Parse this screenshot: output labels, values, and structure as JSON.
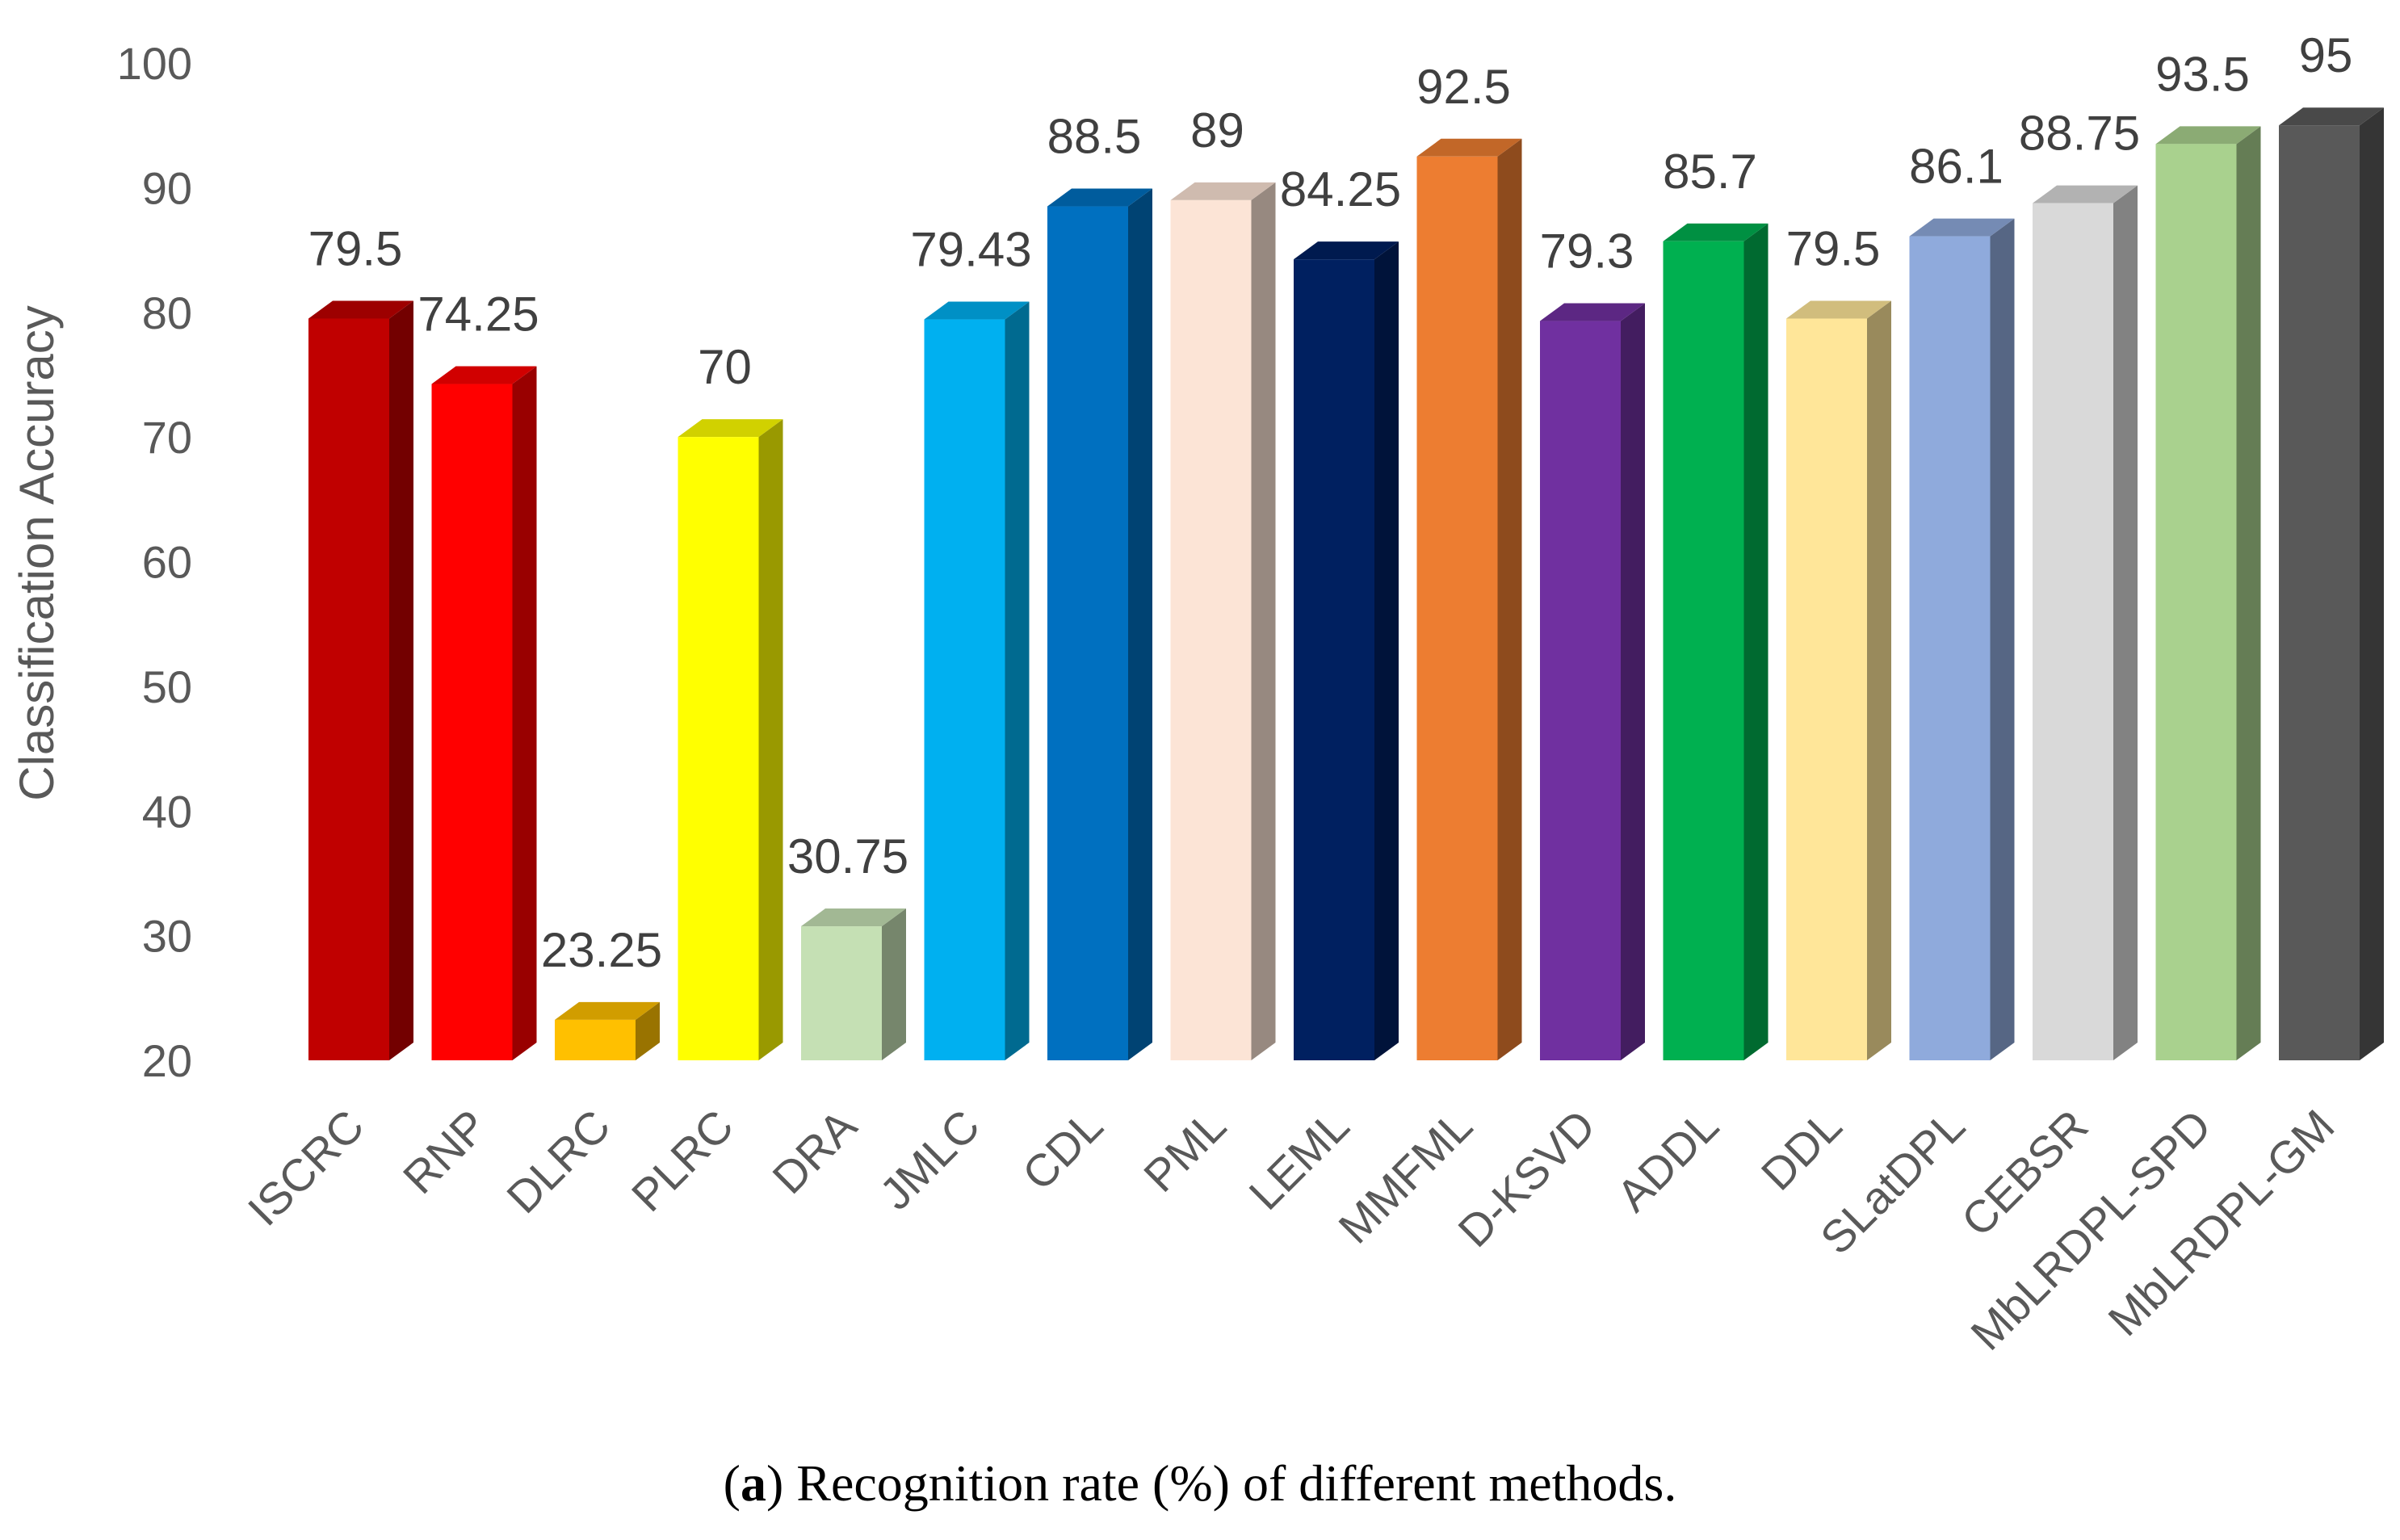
{
  "chart_data": {
    "type": "bar",
    "title": "",
    "xlabel": "",
    "ylabel": "Classification Accuracy",
    "ylim": [
      20,
      100
    ],
    "yticks": [
      20,
      30,
      40,
      50,
      60,
      70,
      80,
      90,
      100
    ],
    "categories": [
      "ISCRC",
      "RNP",
      "DLRC",
      "PLRC",
      "DRA",
      "JMLC",
      "CDL",
      "PML",
      "LEML",
      "MMFML",
      "D-KSVD",
      "ADDL",
      "DDL",
      "SLatDPL",
      "CEBSR",
      "MbLRDPL-SPD",
      "MbLRDPL-GM"
    ],
    "values": [
      79.5,
      74.25,
      23.25,
      70,
      30.75,
      79.43,
      88.5,
      89,
      84.25,
      92.5,
      79.3,
      85.7,
      79.5,
      86.1,
      88.75,
      93.5,
      95
    ],
    "labels": [
      "79.5",
      "74.25",
      "23.25",
      "70",
      "30.75",
      "79.43",
      "88.5",
      "89",
      "84.25",
      "92.5",
      "79.3",
      "85.7",
      "79.5",
      "86.1",
      "88.75",
      "93.5",
      "95"
    ],
    "colors": [
      "#C00000",
      "#FF0000",
      "#FFC000",
      "#FFFF00",
      "#C5E0B4",
      "#00B0F0",
      "#0070C0",
      "#FCE4D6",
      "#002060",
      "#ED7D31",
      "#7030A0",
      "#00B050",
      "#FFE699",
      "#8FAADC",
      "#D9D9D9",
      "#A9D18E",
      "#595959"
    ],
    "gridlines": false,
    "legend": "none"
  },
  "caption": {
    "label": "a",
    "text": "Recognition rate (%) of different methods."
  }
}
